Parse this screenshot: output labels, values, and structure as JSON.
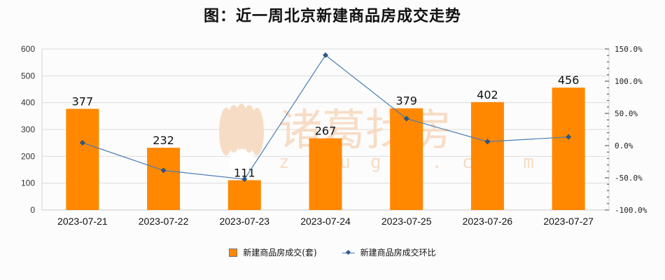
{
  "chart_data": {
    "type": "bar+line",
    "title": "图：近一周北京新建商品房成交走势",
    "categories": [
      "2023-07-21",
      "2023-07-22",
      "2023-07-23",
      "2023-07-24",
      "2023-07-25",
      "2023-07-26",
      "2023-07-27"
    ],
    "series": [
      {
        "name": "新建商品房成交(套)",
        "type": "bar",
        "axis": "left",
        "color": "#ff8800",
        "values": [
          377,
          232,
          111,
          267,
          379,
          402,
          456
        ]
      },
      {
        "name": "新建商品房成交环比",
        "type": "line",
        "axis": "right",
        "color": "#4a7db5",
        "unit": "%",
        "values": [
          4.4,
          -38.5,
          -52.2,
          140.5,
          41.9,
          6.1,
          13.4
        ]
      }
    ],
    "y_left": {
      "min": 0,
      "max": 600,
      "ticks": [
        "0",
        "100",
        "200",
        "300",
        "400",
        "500",
        "600"
      ]
    },
    "y_right": {
      "min": -100,
      "max": 150,
      "ticks": [
        "-100.0%",
        "-50.0%",
        "0.0%",
        "50.0%",
        "100.0%",
        "150.0%"
      ]
    },
    "grid": true,
    "legend_position": "bottom",
    "xlabel": "",
    "ylabel": ""
  },
  "watermark": {
    "cn": "诸葛找房",
    "en": "zhuge.com"
  },
  "legend": {
    "bar_label": "新建商品房成交(套)",
    "line_label": "新建商品房成交环比"
  }
}
